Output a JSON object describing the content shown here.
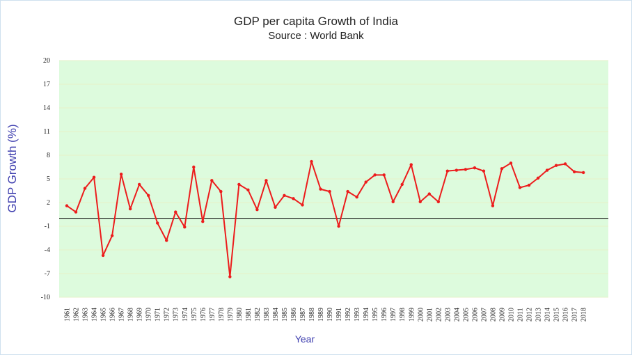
{
  "chart_data": {
    "type": "line",
    "title": "GDP per capita Growth of India",
    "subtitle": "Source : World Bank",
    "xlabel": "Year",
    "ylabel": "GDP Growth (%)",
    "ylim": [
      -10,
      20
    ],
    "yticks": [
      20,
      17,
      14,
      11,
      8,
      5,
      2,
      -1,
      -4,
      -7,
      -10
    ],
    "baseline": 0,
    "grid": true,
    "colors": {
      "plot_background": "#ddfbdd",
      "series": "#ec1c1c",
      "baseline": "#000000",
      "grid": "#e6f0c8"
    },
    "series": [
      {
        "name": "GDP per capita Growth",
        "x": [
          "1961",
          "1962",
          "1963",
          "1964",
          "1965",
          "1966",
          "1967",
          "1968",
          "1969",
          "1970",
          "1971",
          "1972",
          "1973",
          "1974",
          "1975",
          "1976",
          "1977",
          "1978",
          "1979",
          "1980",
          "1981",
          "1982",
          "1983",
          "1984",
          "1985",
          "1986",
          "1987",
          "1988",
          "1989",
          "1990",
          "1991",
          "1992",
          "1993",
          "1994",
          "1995",
          "1996",
          "1997",
          "1998",
          "1999",
          "2000",
          "2001",
          "2002",
          "2003",
          "2004",
          "2005",
          "2006",
          "2007",
          "2008",
          "2009",
          "2010",
          "2011",
          "2012",
          "2013",
          "2014",
          "2015",
          "2016",
          "2017",
          "2018"
        ],
        "values": [
          1.6,
          0.8,
          3.8,
          5.2,
          -4.7,
          -2.2,
          5.6,
          1.2,
          4.3,
          2.9,
          -0.6,
          -2.8,
          0.8,
          -1.1,
          6.5,
          -0.4,
          4.8,
          3.4,
          -7.4,
          4.3,
          3.6,
          1.1,
          4.8,
          1.4,
          2.9,
          2.5,
          1.7,
          7.2,
          3.7,
          3.4,
          -1.0,
          3.4,
          2.7,
          4.6,
          5.5,
          5.5,
          2.1,
          4.3,
          6.8,
          2.1,
          3.1,
          2.1,
          6.0,
          6.1,
          6.2,
          6.4,
          6.0,
          1.6,
          6.3,
          7.0,
          3.9,
          4.2,
          5.1,
          6.1,
          6.7,
          6.9,
          5.9,
          5.8
        ]
      }
    ]
  }
}
